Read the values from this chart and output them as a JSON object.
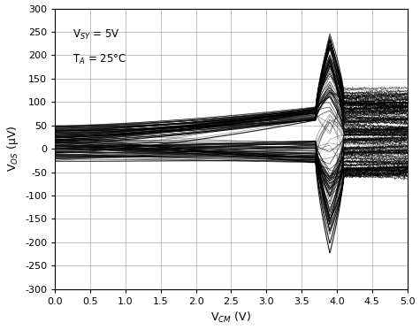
{
  "title": "",
  "xlabel": "V$_{CM}$ (V)",
  "ylabel": "V$_{OS}$ (μV)",
  "xlim": [
    0,
    5.0
  ],
  "ylim": [
    -300,
    300
  ],
  "xticks": [
    0,
    0.5,
    1.0,
    1.5,
    2.0,
    2.5,
    3.0,
    3.5,
    4.0,
    4.5,
    5.0
  ],
  "yticks": [
    -300,
    -250,
    -200,
    -150,
    -100,
    -50,
    0,
    50,
    100,
    150,
    200,
    250,
    300
  ],
  "annotation_line1": "V$_{SY}$ = 5V",
  "annotation_line2": "T$_A$ = 25°C",
  "line_color": "black",
  "line_width": 0.5,
  "line_alpha": 0.75,
  "background_color": "white",
  "grid_color": "#aaaaaa",
  "figsize": [
    4.75,
    3.73
  ],
  "dpi": 100
}
